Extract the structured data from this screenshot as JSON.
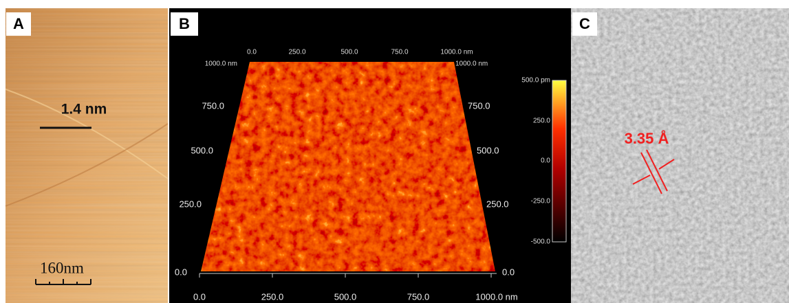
{
  "panels": [
    {
      "label": "A",
      "scale_annotation": "1.4 nm",
      "scale_bar": "160nm"
    },
    {
      "label": "B",
      "top_axis": [
        "0.0",
        "250.0",
        "500.0",
        "750.0",
        "1000.0 nm"
      ],
      "left_axis": [
        "1000.0 nm",
        "750.0",
        "500.0",
        "250.0",
        "0.0"
      ],
      "right_axis": [
        "1000.0 nm",
        "750.0",
        "500.0",
        "250.0",
        "0.0"
      ],
      "bottom_axis": [
        "0.0",
        "250.0",
        "500.0",
        "750.0",
        "1000.0 nm"
      ],
      "colorbar": [
        "500.0 pm",
        "250.0",
        "0.0",
        "-250.0",
        "-500.0"
      ]
    },
    {
      "label": "C",
      "annotation": "3.35 Å"
    }
  ]
}
